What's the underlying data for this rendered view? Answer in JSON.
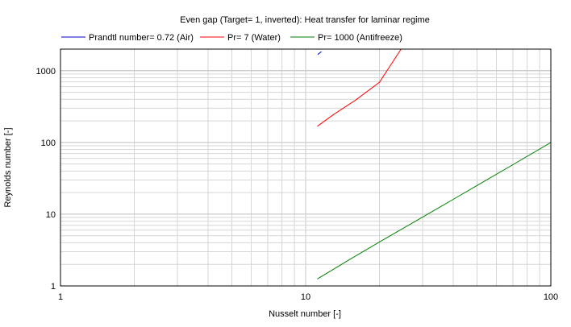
{
  "chart_data": {
    "type": "line",
    "title": "Even gap (Target= 1, inverted): Heat transfer for laminar regime",
    "xlabel": "Nusselt number [-]",
    "ylabel": "Reynolds number [-]",
    "xscale": "log",
    "yscale": "log",
    "xlim": [
      1,
      100
    ],
    "ylim": [
      1,
      2000
    ],
    "x_ticks": [
      "1",
      "10",
      "100"
    ],
    "y_ticks": [
      "1",
      "10",
      "100",
      "1000"
    ],
    "grid": true,
    "legend_position": "top",
    "series": [
      {
        "name": "Prandtl number= 0.72 (Air)",
        "color": "#0000c0",
        "x": [
          11.2,
          11.6
        ],
        "y": [
          1680,
          1850
        ]
      },
      {
        "name": "Pr= 7 (Water)",
        "color": "#ff0000",
        "x": [
          11.15,
          13,
          16,
          20,
          24.5
        ],
        "y": [
          168,
          245,
          390,
          690,
          2000
        ]
      },
      {
        "name": "Pr= 1000 (Antifreeze)",
        "color": "#008000",
        "x": [
          11.15,
          15,
          20,
          30,
          40,
          50,
          70,
          100
        ],
        "y": [
          1.25,
          2.3,
          4.1,
          9.1,
          16.1,
          25.1,
          49,
          100
        ]
      }
    ]
  }
}
